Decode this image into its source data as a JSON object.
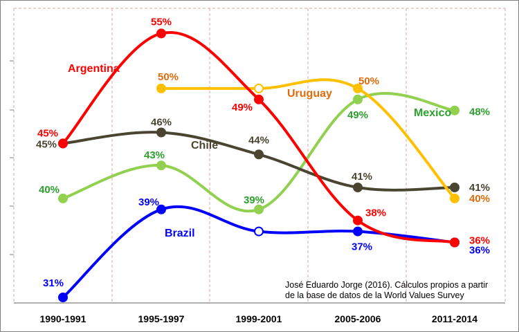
{
  "chart_data": {
    "type": "line",
    "title": "",
    "xlabel": "",
    "ylabel": "",
    "ylim": [
      30,
      56
    ],
    "grid": true,
    "categories": [
      "1990-1991",
      "1995-1997",
      "1999-2001",
      "2005-2006",
      "2011-2014"
    ],
    "series": [
      {
        "name": "Argentina",
        "color": "#ff0000",
        "values": [
          45,
          55,
          49,
          38,
          36
        ],
        "labels": [
          "45%",
          "55%",
          "49%",
          "38%",
          "36%"
        ]
      },
      {
        "name": "Uruguay",
        "color": "#ffc000",
        "values": [
          null,
          50,
          50,
          50,
          40
        ],
        "labels": [
          "",
          "50%",
          "",
          "50%",
          "40%"
        ]
      },
      {
        "name": "Chile",
        "color": "#4a4531",
        "values": [
          45,
          46,
          44,
          41,
          41
        ],
        "labels": [
          "45%",
          "46%",
          "44%",
          "41%",
          "41%"
        ]
      },
      {
        "name": "Mexico",
        "color": "#92d050",
        "values": [
          40,
          43,
          39,
          49,
          48
        ],
        "labels": [
          "40%",
          "43%",
          "39%",
          "49%",
          "48%"
        ]
      },
      {
        "name": "Brazil",
        "color": "#0000ff",
        "values": [
          31,
          39,
          37,
          37,
          36
        ],
        "labels": [
          "31%",
          "39%",
          "",
          "37%",
          "36%"
        ]
      }
    ],
    "label_colors": {
      "Uruguay": "#e26b0a",
      "Mexico": "#2ca02c"
    },
    "source_note": [
      "José Eduardo Jorge (2016). Cálculos propios a partir",
      "de la base de datos de la World Values Survey"
    ]
  }
}
